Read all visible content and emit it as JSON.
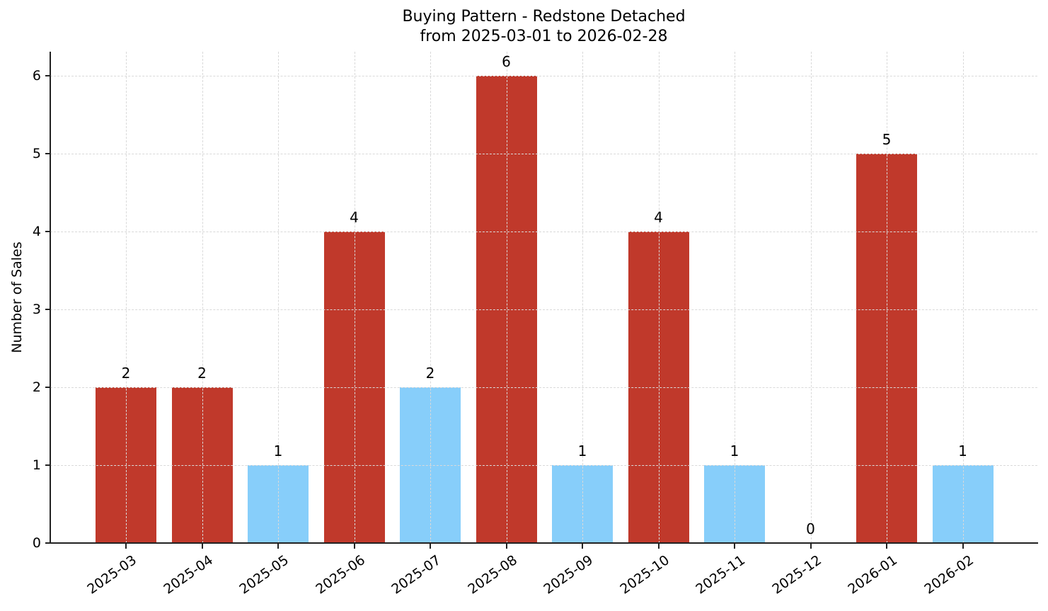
{
  "chart_data": {
    "type": "bar",
    "title": "Buying Pattern - Redstone Detached",
    "subtitle": "from 2025-03-01 to 2026-02-28",
    "xlabel": "",
    "ylabel": "Number of Sales",
    "ylim": [
      0,
      6.3
    ],
    "yticks": [
      0,
      1,
      2,
      3,
      4,
      5,
      6
    ],
    "grid": true,
    "legend": null,
    "categories": [
      "2025-03",
      "2025-04",
      "2025-05",
      "2025-06",
      "2025-07",
      "2025-08",
      "2025-09",
      "2025-10",
      "2025-11",
      "2025-12",
      "2026-01",
      "2026-02"
    ],
    "values": [
      2,
      2,
      1,
      4,
      2,
      6,
      1,
      4,
      1,
      0,
      5,
      1
    ],
    "bar_colors": [
      "#c0392b",
      "#c0392b",
      "#87cefa",
      "#c0392b",
      "#87cefa",
      "#c0392b",
      "#87cefa",
      "#c0392b",
      "#87cefa",
      "#87cefa",
      "#c0392b",
      "#87cefa"
    ],
    "data_labels": [
      "2",
      "2",
      "1",
      "4",
      "2",
      "6",
      "1",
      "4",
      "1",
      "0",
      "5",
      "1"
    ]
  },
  "colors": {
    "high": "#c0392b",
    "low": "#87cefa",
    "axis": "#222222",
    "grid": "#d9d9d9"
  }
}
